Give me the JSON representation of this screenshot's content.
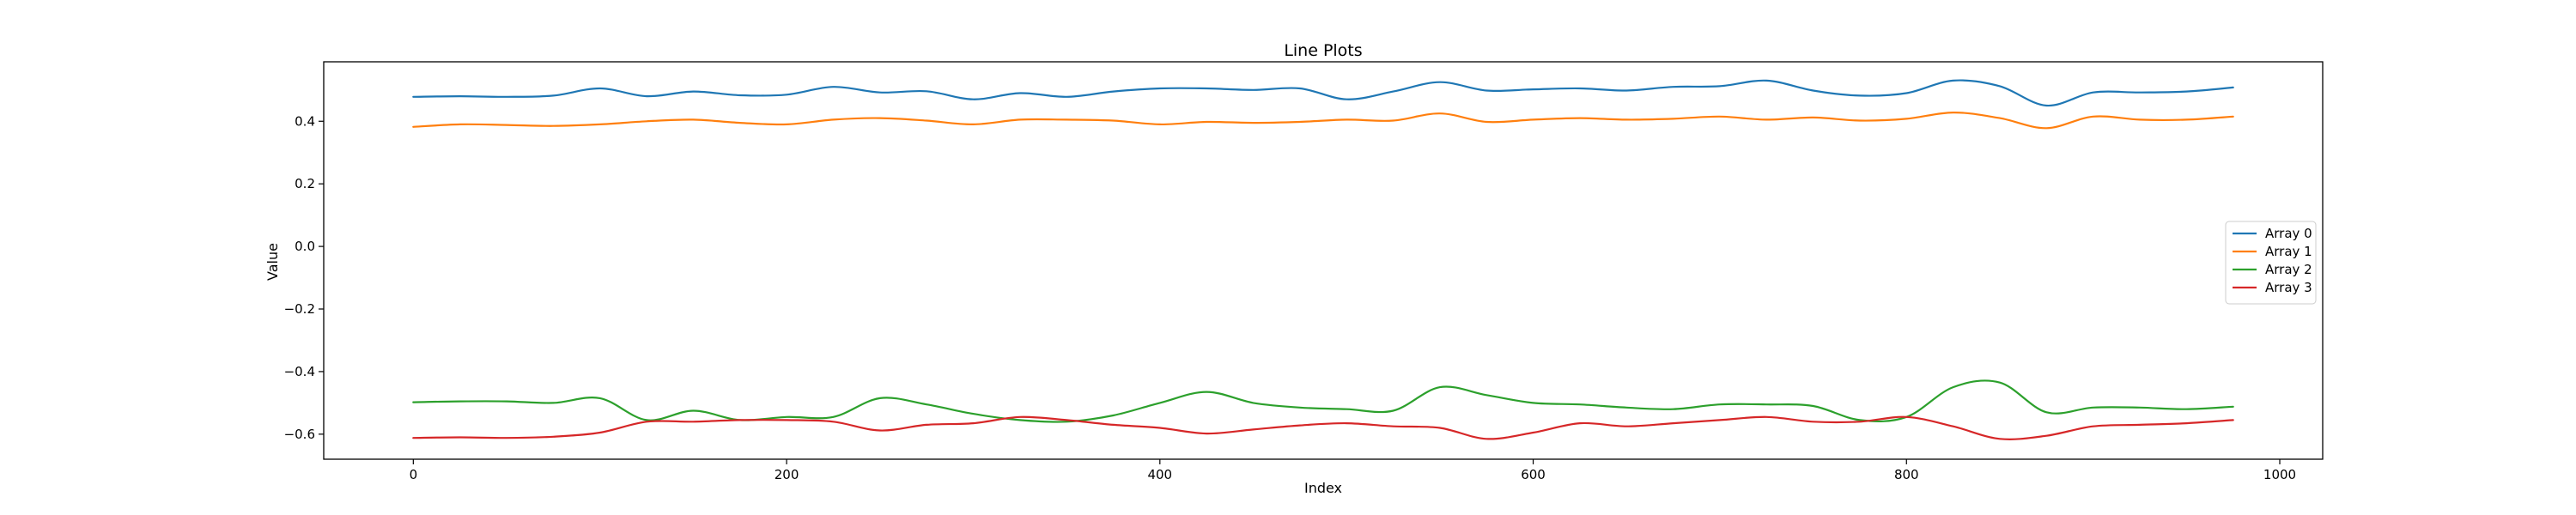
{
  "chart_data": {
    "type": "line",
    "title": "Line Plots",
    "xlabel": "Index",
    "ylabel": "Value",
    "xlim": [
      -48,
      1023
    ],
    "ylim": [
      -0.68,
      0.59
    ],
    "xticks": [
      0,
      200,
      400,
      600,
      800,
      1000
    ],
    "xtick_labels": [
      "0",
      "200",
      "400",
      "600",
      "800",
      "1000"
    ],
    "yticks": [
      -0.6,
      -0.4,
      -0.2,
      0.0,
      0.2,
      0.4
    ],
    "ytick_labels": [
      "−0.6",
      "−0.4",
      "−0.2",
      "0.0",
      "0.2",
      "0.4"
    ],
    "grid": false,
    "legend_position": "center-right",
    "x": [
      0,
      25,
      50,
      75,
      100,
      125,
      150,
      175,
      200,
      225,
      250,
      275,
      300,
      325,
      350,
      375,
      400,
      425,
      450,
      475,
      500,
      525,
      550,
      575,
      600,
      625,
      650,
      675,
      700,
      725,
      750,
      775,
      800,
      825,
      850,
      875,
      900,
      925,
      950,
      975
    ],
    "series": [
      {
        "name": "Array 0",
        "color": "#1f77b4",
        "values": [
          0.478,
          0.48,
          0.478,
          0.482,
          0.505,
          0.48,
          0.495,
          0.483,
          0.485,
          0.51,
          0.492,
          0.496,
          0.47,
          0.49,
          0.478,
          0.495,
          0.505,
          0.505,
          0.5,
          0.505,
          0.47,
          0.495,
          0.525,
          0.498,
          0.502,
          0.505,
          0.498,
          0.51,
          0.512,
          0.53,
          0.498,
          0.482,
          0.49,
          0.53,
          0.512,
          0.45,
          0.492,
          0.492,
          0.495,
          0.508
        ]
      },
      {
        "name": "Array 1",
        "color": "#ff7f0e",
        "values": [
          0.382,
          0.39,
          0.388,
          0.385,
          0.39,
          0.4,
          0.405,
          0.395,
          0.39,
          0.405,
          0.41,
          0.402,
          0.39,
          0.405,
          0.405,
          0.402,
          0.39,
          0.398,
          0.395,
          0.398,
          0.405,
          0.402,
          0.425,
          0.398,
          0.405,
          0.41,
          0.405,
          0.408,
          0.415,
          0.405,
          0.412,
          0.402,
          0.408,
          0.428,
          0.41,
          0.378,
          0.415,
          0.405,
          0.405,
          0.415
        ]
      },
      {
        "name": "Array 2",
        "color": "#2ca02c",
        "values": [
          -0.498,
          -0.495,
          -0.495,
          -0.5,
          -0.485,
          -0.555,
          -0.525,
          -0.555,
          -0.545,
          -0.545,
          -0.485,
          -0.505,
          -0.535,
          -0.555,
          -0.56,
          -0.54,
          -0.5,
          -0.465,
          -0.5,
          -0.515,
          -0.52,
          -0.525,
          -0.45,
          -0.475,
          -0.5,
          -0.505,
          -0.515,
          -0.52,
          -0.505,
          -0.505,
          -0.51,
          -0.555,
          -0.545,
          -0.45,
          -0.435,
          -0.53,
          -0.515,
          -0.515,
          -0.52,
          -0.512
        ]
      },
      {
        "name": "Array 3",
        "color": "#d62728",
        "values": [
          -0.612,
          -0.61,
          -0.612,
          -0.608,
          -0.595,
          -0.56,
          -0.56,
          -0.555,
          -0.555,
          -0.56,
          -0.588,
          -0.57,
          -0.565,
          -0.545,
          -0.555,
          -0.57,
          -0.58,
          -0.598,
          -0.585,
          -0.572,
          -0.565,
          -0.575,
          -0.58,
          -0.615,
          -0.595,
          -0.565,
          -0.575,
          -0.565,
          -0.555,
          -0.545,
          -0.56,
          -0.56,
          -0.545,
          -0.575,
          -0.615,
          -0.605,
          -0.575,
          -0.57,
          -0.565,
          -0.555
        ]
      }
    ]
  }
}
